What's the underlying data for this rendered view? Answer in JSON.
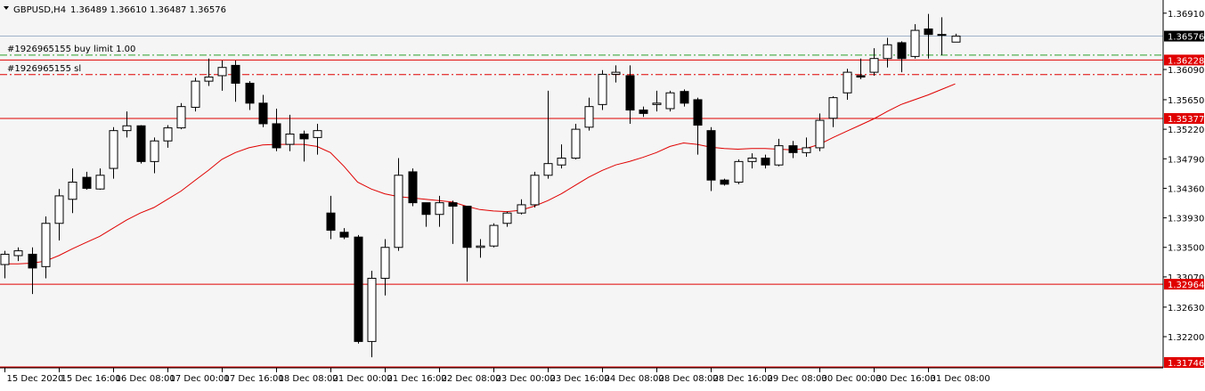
{
  "header": {
    "symbol_label": "GBPUSD,H4",
    "ohlc": "1.36489 1.36610 1.36487 1.36576",
    "collapse_icon": "triangle-down-icon"
  },
  "colors": {
    "background": "#f5f5f5",
    "axis": "#000000",
    "bull_body": "#ffffff",
    "bear_body": "#000000",
    "ma_line": "#e00000",
    "level_line": "#e00000",
    "bid_line": "#a0b4c8",
    "order_line": "#2da02d",
    "sl_line": "#e00000",
    "level_label_bg": "#e00000",
    "price_label_bg": "#000000"
  },
  "chart_data": {
    "type": "candlestick",
    "symbol": "GBPUSD",
    "timeframe": "H4",
    "y_range": [
      1.31746,
      1.3705
    ],
    "y_ticks": [
      "1.36910",
      "1.36090",
      "1.35650",
      "1.35220",
      "1.34790",
      "1.34360",
      "1.33930",
      "1.33500",
      "1.33070",
      "1.32630",
      "1.32200"
    ],
    "x_labels": [
      {
        "index": 0,
        "text": "15 Dec 2020"
      },
      {
        "index": 4,
        "text": "15 Dec 16:00"
      },
      {
        "index": 8,
        "text": "16 Dec 08:00"
      },
      {
        "index": 12,
        "text": "17 Dec 00:00"
      },
      {
        "index": 16,
        "text": "17 Dec 16:00"
      },
      {
        "index": 20,
        "text": "18 Dec 08:00"
      },
      {
        "index": 24,
        "text": "21 Dec 00:00"
      },
      {
        "index": 28,
        "text": "21 Dec 16:00"
      },
      {
        "index": 32,
        "text": "22 Dec 08:00"
      },
      {
        "index": 36,
        "text": "23 Dec 00:00"
      },
      {
        "index": 40,
        "text": "23 Dec 16:00"
      },
      {
        "index": 44,
        "text": "24 Dec 08:00"
      },
      {
        "index": 48,
        "text": "28 Dec 08:00"
      },
      {
        "index": 52,
        "text": "28 Dec 16:00"
      },
      {
        "index": 56,
        "text": "29 Dec 08:00"
      },
      {
        "index": 60,
        "text": "30 Dec 00:00"
      },
      {
        "index": 64,
        "text": "30 Dec 16:00"
      },
      {
        "index": 68,
        "text": "31 Dec 08:00"
      }
    ],
    "candles": [
      {
        "o": 1.3325,
        "h": 1.3345,
        "l": 1.3305,
        "c": 1.334
      },
      {
        "o": 1.3338,
        "h": 1.335,
        "l": 1.333,
        "c": 1.3345
      },
      {
        "o": 1.334,
        "h": 1.335,
        "l": 1.3282,
        "c": 1.332
      },
      {
        "o": 1.3322,
        "h": 1.3395,
        "l": 1.3305,
        "c": 1.3385
      },
      {
        "o": 1.3385,
        "h": 1.3435,
        "l": 1.336,
        "c": 1.3425
      },
      {
        "o": 1.342,
        "h": 1.3465,
        "l": 1.34,
        "c": 1.3445
      },
      {
        "o": 1.3452,
        "h": 1.346,
        "l": 1.3434,
        "c": 1.3436
      },
      {
        "o": 1.3435,
        "h": 1.3465,
        "l": 1.3434,
        "c": 1.3455
      },
      {
        "o": 1.3465,
        "h": 1.3525,
        "l": 1.345,
        "c": 1.352
      },
      {
        "o": 1.352,
        "h": 1.3548,
        "l": 1.351,
        "c": 1.3527
      },
      {
        "o": 1.3527,
        "h": 1.3528,
        "l": 1.3472,
        "c": 1.3475
      },
      {
        "o": 1.3475,
        "h": 1.351,
        "l": 1.3458,
        "c": 1.3505
      },
      {
        "o": 1.3505,
        "h": 1.3528,
        "l": 1.3495,
        "c": 1.3524
      },
      {
        "o": 1.3524,
        "h": 1.356,
        "l": 1.3522,
        "c": 1.3555
      },
      {
        "o": 1.3554,
        "h": 1.3597,
        "l": 1.3548,
        "c": 1.3592
      },
      {
        "o": 1.3592,
        "h": 1.3625,
        "l": 1.3585,
        "c": 1.3598
      },
      {
        "o": 1.36,
        "h": 1.3622,
        "l": 1.3578,
        "c": 1.3612
      },
      {
        "o": 1.3615,
        "h": 1.3622,
        "l": 1.3562,
        "c": 1.3589
      },
      {
        "o": 1.3589,
        "h": 1.3592,
        "l": 1.355,
        "c": 1.356
      },
      {
        "o": 1.356,
        "h": 1.3572,
        "l": 1.3525,
        "c": 1.353
      },
      {
        "o": 1.353,
        "h": 1.3552,
        "l": 1.349,
        "c": 1.3495
      },
      {
        "o": 1.35,
        "h": 1.3543,
        "l": 1.349,
        "c": 1.3515
      },
      {
        "o": 1.3515,
        "h": 1.352,
        "l": 1.3475,
        "c": 1.3508
      },
      {
        "o": 1.351,
        "h": 1.353,
        "l": 1.3485,
        "c": 1.352
      },
      {
        "o": 1.34,
        "h": 1.3425,
        "l": 1.3362,
        "c": 1.3375
      },
      {
        "o": 1.3372,
        "h": 1.3378,
        "l": 1.3362,
        "c": 1.3365
      },
      {
        "o": 1.3365,
        "h": 1.3368,
        "l": 1.321,
        "c": 1.3213
      },
      {
        "o": 1.3213,
        "h": 1.3316,
        "l": 1.319,
        "c": 1.3305
      },
      {
        "o": 1.3305,
        "h": 1.3362,
        "l": 1.328,
        "c": 1.335
      },
      {
        "o": 1.335,
        "h": 1.348,
        "l": 1.3345,
        "c": 1.3455
      },
      {
        "o": 1.346,
        "h": 1.3465,
        "l": 1.341,
        "c": 1.3415
      },
      {
        "o": 1.3415,
        "h": 1.3415,
        "l": 1.338,
        "c": 1.3398
      },
      {
        "o": 1.3398,
        "h": 1.3425,
        "l": 1.338,
        "c": 1.3415
      },
      {
        "o": 1.3415,
        "h": 1.3418,
        "l": 1.3355,
        "c": 1.341
      },
      {
        "o": 1.341,
        "h": 1.341,
        "l": 1.33,
        "c": 1.335
      },
      {
        "o": 1.335,
        "h": 1.3362,
        "l": 1.3335,
        "c": 1.3352
      },
      {
        "o": 1.3352,
        "h": 1.3385,
        "l": 1.335,
        "c": 1.3382
      },
      {
        "o": 1.3385,
        "h": 1.3402,
        "l": 1.338,
        "c": 1.34
      },
      {
        "o": 1.34,
        "h": 1.342,
        "l": 1.3398,
        "c": 1.3412
      },
      {
        "o": 1.3412,
        "h": 1.346,
        "l": 1.3408,
        "c": 1.3455
      },
      {
        "o": 1.3455,
        "h": 1.3578,
        "l": 1.345,
        "c": 1.3472
      },
      {
        "o": 1.347,
        "h": 1.35,
        "l": 1.3465,
        "c": 1.348
      },
      {
        "o": 1.348,
        "h": 1.353,
        "l": 1.3478,
        "c": 1.3522
      },
      {
        "o": 1.3525,
        "h": 1.3568,
        "l": 1.352,
        "c": 1.3555
      },
      {
        "o": 1.3558,
        "h": 1.3608,
        "l": 1.355,
        "c": 1.3602
      },
      {
        "o": 1.3602,
        "h": 1.3615,
        "l": 1.359,
        "c": 1.3605
      },
      {
        "o": 1.36,
        "h": 1.3615,
        "l": 1.353,
        "c": 1.355
      },
      {
        "o": 1.355,
        "h": 1.3555,
        "l": 1.354,
        "c": 1.3545
      },
      {
        "o": 1.3558,
        "h": 1.3578,
        "l": 1.3548,
        "c": 1.356
      },
      {
        "o": 1.3552,
        "h": 1.3578,
        "l": 1.3548,
        "c": 1.3575
      },
      {
        "o": 1.3577,
        "h": 1.358,
        "l": 1.3555,
        "c": 1.356
      },
      {
        "o": 1.3565,
        "h": 1.3568,
        "l": 1.3485,
        "c": 1.3528
      },
      {
        "o": 1.352,
        "h": 1.3525,
        "l": 1.3432,
        "c": 1.3448
      },
      {
        "o": 1.3448,
        "h": 1.345,
        "l": 1.344,
        "c": 1.3442
      },
      {
        "o": 1.3445,
        "h": 1.3478,
        "l": 1.3442,
        "c": 1.3475
      },
      {
        "o": 1.3475,
        "h": 1.3487,
        "l": 1.3465,
        "c": 1.348
      },
      {
        "o": 1.348,
        "h": 1.3485,
        "l": 1.3465,
        "c": 1.347
      },
      {
        "o": 1.347,
        "h": 1.3508,
        "l": 1.3468,
        "c": 1.3498
      },
      {
        "o": 1.3498,
        "h": 1.3505,
        "l": 1.348,
        "c": 1.3488
      },
      {
        "o": 1.3488,
        "h": 1.351,
        "l": 1.3482,
        "c": 1.3495
      },
      {
        "o": 1.3495,
        "h": 1.3545,
        "l": 1.349,
        "c": 1.3535
      },
      {
        "o": 1.3538,
        "h": 1.357,
        "l": 1.3525,
        "c": 1.3568
      },
      {
        "o": 1.3575,
        "h": 1.361,
        "l": 1.3565,
        "c": 1.3605
      },
      {
        "o": 1.36,
        "h": 1.3625,
        "l": 1.3595,
        "c": 1.3598
      },
      {
        "o": 1.3605,
        "h": 1.364,
        "l": 1.36,
        "c": 1.3625
      },
      {
        "o": 1.3625,
        "h": 1.3655,
        "l": 1.3612,
        "c": 1.3645
      },
      {
        "o": 1.3648,
        "h": 1.365,
        "l": 1.3605,
        "c": 1.3625
      },
      {
        "o": 1.3628,
        "h": 1.3675,
        "l": 1.3625,
        "c": 1.3666
      },
      {
        "o": 1.3668,
        "h": 1.369,
        "l": 1.3625,
        "c": 1.366
      },
      {
        "o": 1.366,
        "h": 1.3685,
        "l": 1.363,
        "c": 1.366
      },
      {
        "o": 1.36489,
        "h": 1.3661,
        "l": 1.36487,
        "c": 1.36576
      }
    ],
    "moving_average": [
      1.3326,
      1.3326,
      1.3327,
      1.333,
      1.3338,
      1.3348,
      1.3357,
      1.3366,
      1.3378,
      1.339,
      1.34,
      1.3408,
      1.342,
      1.3432,
      1.3447,
      1.3462,
      1.3478,
      1.3488,
      1.3495,
      1.3499,
      1.35,
      1.35,
      1.35,
      1.3497,
      1.3488,
      1.3468,
      1.3445,
      1.3435,
      1.3428,
      1.3424,
      1.3422,
      1.342,
      1.3418,
      1.3416,
      1.341,
      1.3405,
      1.3403,
      1.3402,
      1.3404,
      1.341,
      1.3418,
      1.3428,
      1.344,
      1.3452,
      1.3462,
      1.347,
      1.3475,
      1.3481,
      1.3488,
      1.3497,
      1.3502,
      1.35,
      1.3496,
      1.3494,
      1.3493,
      1.3494,
      1.3494,
      1.3493,
      1.3492,
      1.3494,
      1.35,
      1.351,
      1.3519,
      1.3528,
      1.3537,
      1.3548,
      1.3558,
      1.3565,
      1.3572,
      1.358,
      1.3588
    ],
    "h_levels": [
      {
        "price": 1.36228,
        "label": "1.36228"
      },
      {
        "price": 1.35377,
        "label": "1.35377"
      },
      {
        "price": 1.32964,
        "label": "1.32964"
      },
      {
        "price": 1.31746,
        "label": "1.31746"
      }
    ],
    "bid_line": {
      "price": 1.36576,
      "label": "1.36576"
    },
    "order_lines": [
      {
        "price": 1.363,
        "text": "#1926965155 buy limit 1.00",
        "kind": "order"
      },
      {
        "price": 1.36015,
        "text": "#1926965155 sl",
        "kind": "sl"
      }
    ],
    "grid": false
  }
}
